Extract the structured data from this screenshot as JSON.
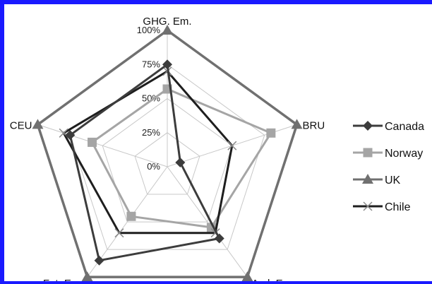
{
  "chart_data": {
    "type": "radar",
    "axes": [
      "GHG. Em.",
      "BRU",
      "Acd. Em.",
      "Fut. Em.",
      "CEU"
    ],
    "tick_labels": [
      "0%",
      "25%",
      "50%",
      "75%",
      "100%"
    ],
    "ticks": [
      0,
      25,
      50,
      75,
      100
    ],
    "range": [
      0,
      100
    ],
    "grid": true,
    "legend_position": "right",
    "series": [
      {
        "name": "Canada",
        "values": [
          75,
          10,
          65,
          85,
          75
        ],
        "color": "#3c3c3c",
        "marker": "diamond"
      },
      {
        "name": "Norway",
        "values": [
          57,
          80,
          55,
          45,
          58
        ],
        "color": "#a5a5a5",
        "marker": "square"
      },
      {
        "name": "UK",
        "values": [
          100,
          100,
          100,
          100,
          100
        ],
        "color": "#707070",
        "marker": "triangle"
      },
      {
        "name": "Chile",
        "values": [
          70,
          50,
          60,
          60,
          80
        ],
        "color": "#1e1e1e",
        "marker": "x"
      }
    ]
  },
  "colors": {
    "border": "#1a1aff",
    "grid": "#c8c8c8"
  }
}
